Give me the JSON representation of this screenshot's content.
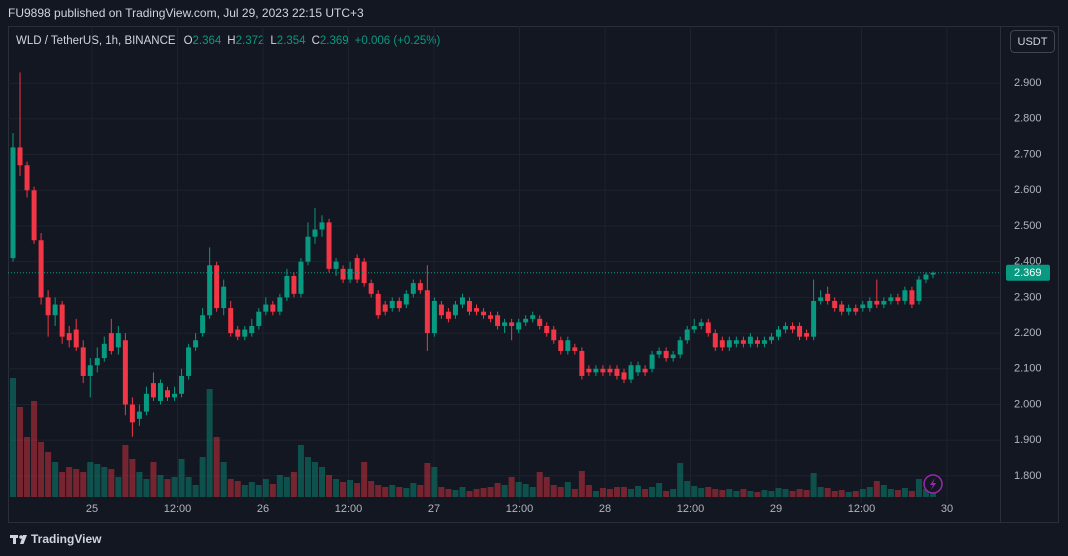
{
  "header": {
    "published": "FU9898 published on TradingView.com, Jul 29, 2023 22:15 UTC+3"
  },
  "footer": {
    "brand": "TradingView"
  },
  "chart_data": {
    "type": "candlestick",
    "legend": {
      "symbol": "WLD / TetherUS, 1h, BINANCE",
      "open_label": "O",
      "open": 2.364,
      "high_label": "H",
      "high": 2.372,
      "low_label": "L",
      "low": 2.354,
      "close_label": "C",
      "close": 2.369,
      "change": "+0.006 (+0.25%)"
    },
    "currency": "USDT",
    "last_price": 2.369,
    "up_color": "#089981",
    "down_color": "#f23645",
    "grid": true,
    "ylim": [
      1.741,
      3.06
    ],
    "yticks": [
      {
        "value": 1.8,
        "label": "1.800"
      },
      {
        "value": 1.9,
        "label": "1.900"
      },
      {
        "value": 2.0,
        "label": "2.000"
      },
      {
        "value": 2.1,
        "label": "2.100"
      },
      {
        "value": 2.2,
        "label": "2.200"
      },
      {
        "value": 2.3,
        "label": "2.300"
      },
      {
        "value": 2.4,
        "label": "2.400"
      },
      {
        "value": 2.5,
        "label": "2.500"
      },
      {
        "value": 2.6,
        "label": "2.600"
      },
      {
        "value": 2.7,
        "label": "2.700"
      },
      {
        "value": 2.8,
        "label": "2.800"
      },
      {
        "value": 2.9,
        "label": "2.900"
      }
    ],
    "xticks": [
      "25",
      "12:00",
      "26",
      "12:00",
      "27",
      "12:00",
      "28",
      "12:00",
      "29",
      "12:00",
      "30"
    ],
    "open": [
      2.41,
      2.72,
      2.67,
      2.6,
      2.46,
      2.3,
      2.25,
      2.28,
      2.2,
      2.21,
      2.16,
      2.08,
      2.11,
      2.13,
      2.2,
      2.16,
      2.18,
      2.0,
      1.96,
      1.98,
      2.06,
      2.01,
      2.04,
      2.02,
      2.03,
      2.08,
      2.16,
      2.2,
      2.25,
      2.39,
      2.27,
      2.27,
      2.21,
      2.19,
      2.2,
      2.22,
      2.26,
      2.28,
      2.26,
      2.3,
      2.36,
      2.31,
      2.4,
      2.47,
      2.49,
      2.51,
      2.38,
      2.38,
      2.35,
      2.41,
      2.4,
      2.34,
      2.31,
      2.28,
      2.27,
      2.29,
      2.28,
      2.31,
      2.34,
      2.32,
      2.2,
      2.28,
      2.26,
      2.25,
      2.28,
      2.29,
      2.27,
      2.26,
      2.25,
      2.25,
      2.22,
      2.23,
      2.21,
      2.23,
      2.24,
      2.24,
      2.22,
      2.21,
      2.18,
      2.15,
      2.16,
      2.15,
      2.1,
      2.09,
      2.1,
      2.1,
      2.1,
      2.09,
      2.07,
      2.09,
      2.1,
      2.1,
      2.14,
      2.15,
      2.13,
      2.14,
      2.18,
      2.21,
      2.22,
      2.23,
      2.2,
      2.18,
      2.16,
      2.17,
      2.18,
      2.17,
      2.18,
      2.17,
      2.18,
      2.19,
      2.21,
      2.22,
      2.22,
      2.2,
      2.19,
      2.29,
      2.31,
      2.29,
      2.28,
      2.26,
      2.27,
      2.27,
      2.27,
      2.29,
      2.28,
      2.29,
      2.3,
      2.29,
      2.32,
      2.29,
      2.35,
      2.364
    ],
    "high": [
      2.76,
      2.93,
      2.68,
      2.61,
      2.48,
      2.32,
      2.3,
      2.29,
      2.22,
      2.24,
      2.18,
      2.13,
      2.16,
      2.19,
      2.24,
      2.22,
      2.2,
      2.02,
      2.0,
      2.05,
      2.09,
      2.07,
      2.05,
      2.05,
      2.1,
      2.17,
      2.2,
      2.27,
      2.44,
      2.4,
      2.35,
      2.29,
      2.22,
      2.22,
      2.24,
      2.27,
      2.3,
      2.29,
      2.31,
      2.38,
      2.37,
      2.41,
      2.51,
      2.55,
      2.53,
      2.52,
      2.41,
      2.39,
      2.4,
      2.42,
      2.41,
      2.35,
      2.32,
      2.29,
      2.3,
      2.3,
      2.32,
      2.35,
      2.35,
      2.39,
      2.3,
      2.29,
      2.27,
      2.29,
      2.31,
      2.3,
      2.28,
      2.27,
      2.26,
      2.26,
      2.24,
      2.24,
      2.24,
      2.25,
      2.26,
      2.25,
      2.23,
      2.22,
      2.19,
      2.19,
      2.17,
      2.16,
      2.11,
      2.11,
      2.11,
      2.11,
      2.11,
      2.1,
      2.12,
      2.12,
      2.11,
      2.15,
      2.16,
      2.16,
      2.15,
      2.19,
      2.22,
      2.24,
      2.24,
      2.24,
      2.21,
      2.19,
      2.19,
      2.19,
      2.19,
      2.2,
      2.19,
      2.19,
      2.2,
      2.22,
      2.23,
      2.23,
      2.23,
      2.21,
      2.35,
      2.32,
      2.33,
      2.3,
      2.29,
      2.28,
      2.28,
      2.29,
      2.3,
      2.35,
      2.3,
      2.31,
      2.31,
      2.33,
      2.33,
      2.36,
      2.37,
      2.372
    ],
    "low": [
      2.4,
      2.64,
      2.58,
      2.45,
      2.28,
      2.19,
      2.22,
      2.17,
      2.16,
      2.15,
      2.06,
      2.02,
      2.09,
      2.12,
      2.14,
      2.14,
      1.97,
      1.91,
      1.94,
      1.97,
      2.01,
      2.0,
      2.01,
      2.01,
      2.02,
      2.07,
      2.15,
      2.19,
      2.24,
      2.26,
      2.25,
      2.19,
      2.18,
      2.18,
      2.19,
      2.21,
      2.25,
      2.25,
      2.25,
      2.29,
      2.3,
      2.3,
      2.39,
      2.45,
      2.47,
      2.37,
      2.36,
      2.34,
      2.34,
      2.34,
      2.33,
      2.3,
      2.24,
      2.25,
      2.26,
      2.26,
      2.27,
      2.3,
      2.31,
      2.15,
      2.19,
      2.24,
      2.23,
      2.24,
      2.27,
      2.25,
      2.25,
      2.24,
      2.23,
      2.21,
      2.2,
      2.18,
      2.2,
      2.22,
      2.23,
      2.21,
      2.19,
      2.17,
      2.14,
      2.14,
      2.14,
      2.07,
      2.08,
      2.08,
      2.08,
      2.08,
      2.07,
      2.06,
      2.06,
      2.08,
      2.08,
      2.09,
      2.13,
      2.12,
      2.12,
      2.13,
      2.17,
      2.2,
      2.21,
      2.19,
      2.15,
      2.15,
      2.15,
      2.16,
      2.16,
      2.16,
      2.16,
      2.16,
      2.17,
      2.18,
      2.2,
      2.2,
      2.18,
      2.18,
      2.18,
      2.28,
      2.28,
      2.26,
      2.25,
      2.25,
      2.25,
      2.26,
      2.26,
      2.27,
      2.27,
      2.28,
      2.28,
      2.28,
      2.27,
      2.28,
      2.34,
      2.354
    ],
    "close": [
      2.72,
      2.67,
      2.6,
      2.46,
      2.3,
      2.25,
      2.28,
      2.19,
      2.18,
      2.16,
      2.08,
      2.11,
      2.13,
      2.17,
      2.15,
      2.2,
      2.0,
      1.95,
      1.98,
      2.03,
      2.02,
      2.06,
      2.02,
      2.03,
      2.08,
      2.16,
      2.18,
      2.25,
      2.39,
      2.27,
      2.33,
      2.2,
      2.19,
      2.21,
      2.22,
      2.26,
      2.28,
      2.26,
      2.3,
      2.36,
      2.31,
      2.4,
      2.47,
      2.49,
      2.51,
      2.38,
      2.4,
      2.35,
      2.38,
      2.35,
      2.34,
      2.31,
      2.25,
      2.26,
      2.29,
      2.27,
      2.31,
      2.34,
      2.32,
      2.2,
      2.29,
      2.25,
      2.24,
      2.28,
      2.3,
      2.26,
      2.26,
      2.25,
      2.24,
      2.22,
      2.23,
      2.22,
      2.23,
      2.24,
      2.25,
      2.22,
      2.2,
      2.18,
      2.15,
      2.18,
      2.15,
      2.08,
      2.09,
      2.1,
      2.09,
      2.09,
      2.08,
      2.07,
      2.11,
      2.11,
      2.09,
      2.14,
      2.15,
      2.13,
      2.14,
      2.18,
      2.21,
      2.22,
      2.23,
      2.2,
      2.16,
      2.16,
      2.18,
      2.18,
      2.17,
      2.19,
      2.17,
      2.18,
      2.19,
      2.21,
      2.22,
      2.21,
      2.19,
      2.19,
      2.29,
      2.3,
      2.29,
      2.27,
      2.26,
      2.27,
      2.26,
      2.28,
      2.29,
      2.28,
      2.29,
      2.3,
      2.29,
      2.32,
      2.28,
      2.35,
      2.364,
      2.369
    ],
    "volume": [
      119,
      90,
      60,
      96,
      55,
      45,
      35,
      25,
      30,
      28,
      25,
      35,
      33,
      30,
      28,
      20,
      52,
      38,
      25,
      18,
      35,
      22,
      18,
      20,
      38,
      20,
      12,
      40,
      108,
      60,
      35,
      18,
      16,
      12,
      15,
      12,
      18,
      13,
      22,
      20,
      25,
      52,
      40,
      35,
      30,
      22,
      18,
      15,
      17,
      14,
      35,
      16,
      12,
      10,
      12,
      10,
      9,
      14,
      12,
      34,
      30,
      10,
      8,
      7,
      10,
      6,
      8,
      9,
      10,
      14,
      12,
      20,
      15,
      13,
      10,
      25,
      20,
      12,
      10,
      15,
      8,
      26,
      12,
      6,
      9,
      8,
      10,
      10,
      8,
      11,
      8,
      10,
      14,
      6,
      8,
      34,
      16,
      11,
      9,
      10,
      8,
      7,
      8,
      6,
      8,
      6,
      5,
      7,
      6,
      9,
      8,
      6,
      8,
      7,
      24,
      10,
      9,
      6,
      7,
      5,
      6,
      8,
      10,
      16,
      12,
      8,
      7,
      9,
      6,
      18,
      8,
      4
    ]
  }
}
